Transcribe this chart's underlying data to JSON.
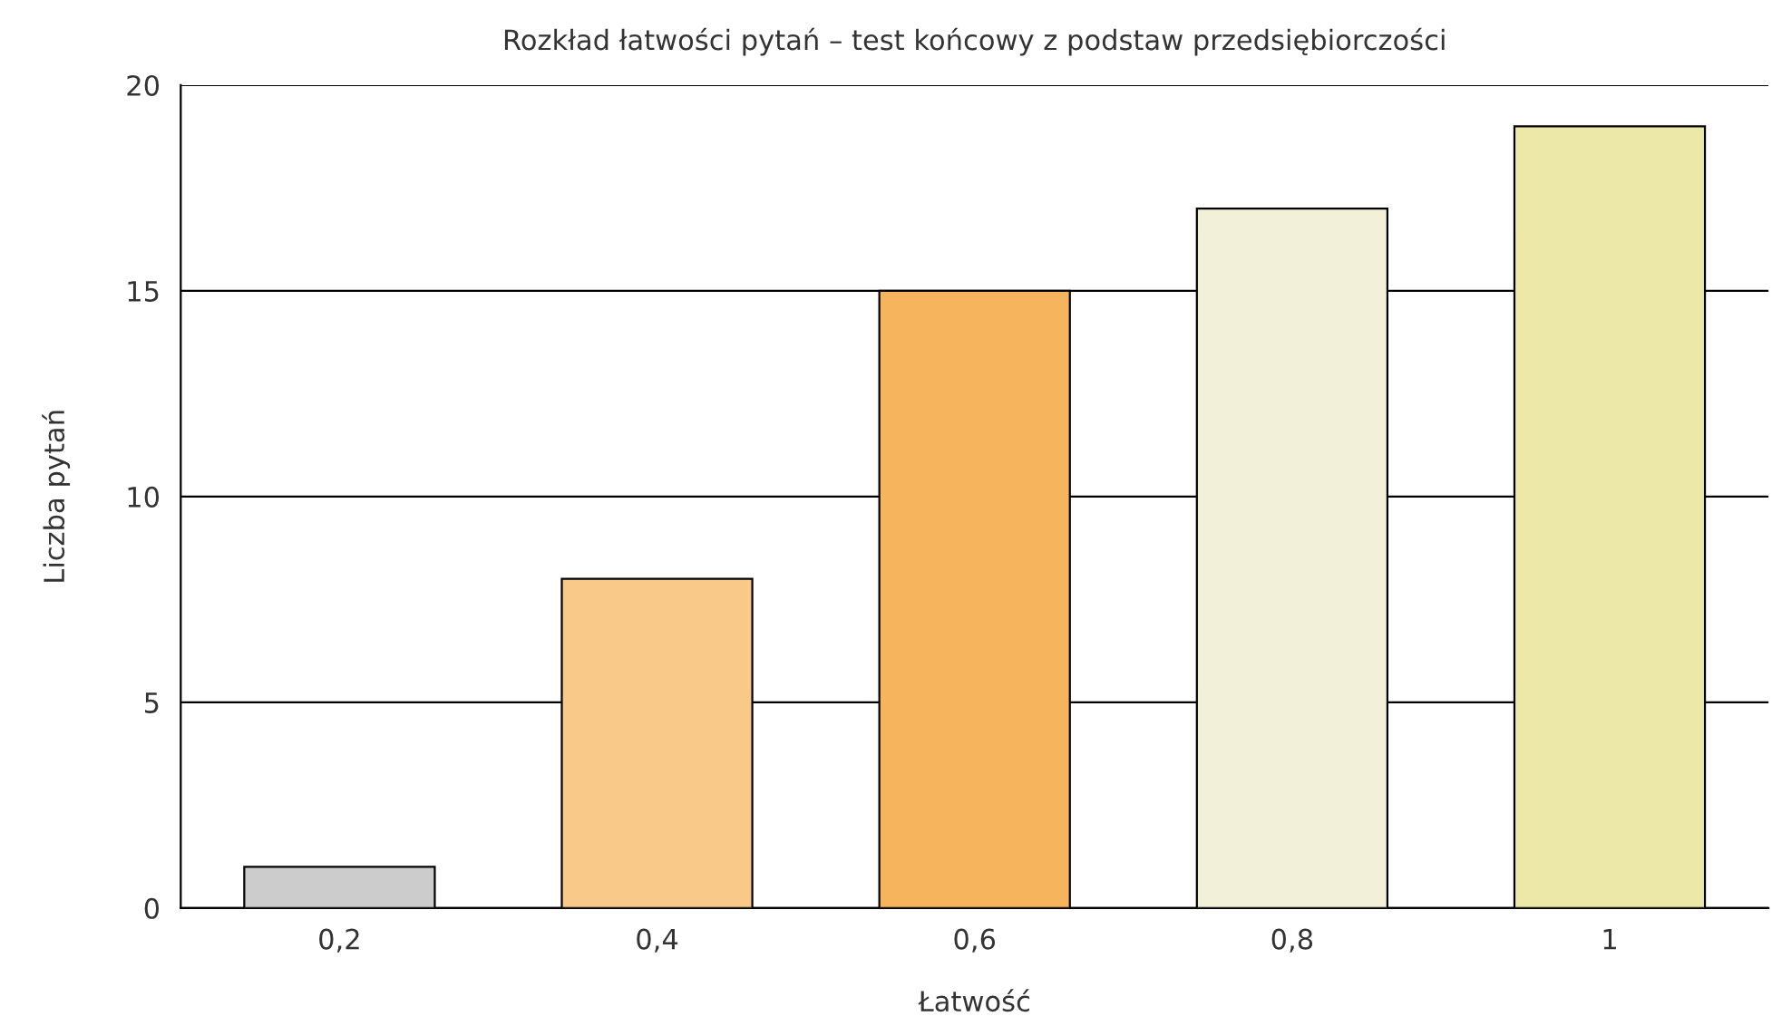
{
  "chart_data": {
    "type": "bar",
    "title": "Rozkład łatwości pytań – test końcowy z podstaw przedsiębiorczości",
    "xlabel": "Łatwość",
    "ylabel": "Liczba pytań",
    "categories": [
      "0,2",
      "0,4",
      "0,6",
      "0,8",
      "1"
    ],
    "values": [
      1,
      8,
      15,
      17,
      19
    ],
    "colors": [
      "#cccccc",
      "#f9c98a",
      "#f6b55d",
      "#f2f0d8",
      "#ebe8a8"
    ],
    "ylim": [
      0,
      20
    ],
    "yticks": [
      0,
      5,
      10,
      15,
      20
    ],
    "grid": "y",
    "legend": false
  }
}
